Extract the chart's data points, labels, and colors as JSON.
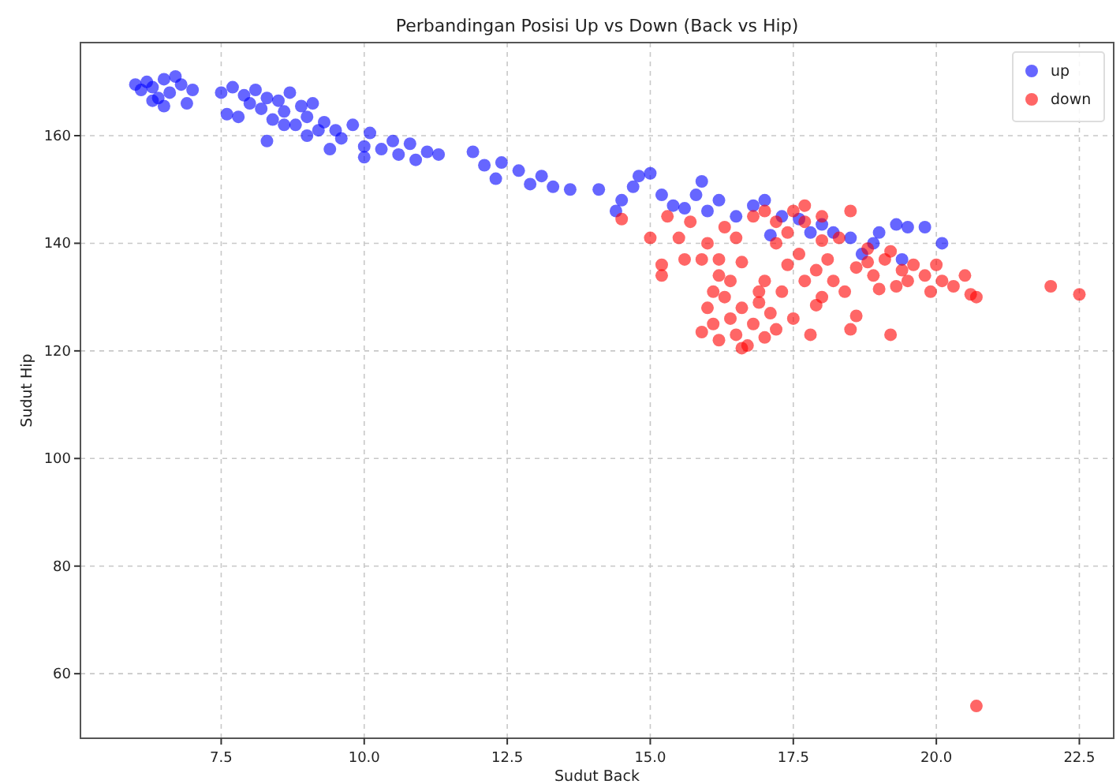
{
  "chart_data": {
    "type": "scatter",
    "title": "Perbandingan Posisi Up vs Down (Back vs Hip)",
    "xlabel": "Sudut Back",
    "ylabel": "Sudut Hip",
    "xlim": [
      5.04,
      23.1
    ],
    "ylim": [
      48,
      177.3
    ],
    "xticks": [
      {
        "value": 7.5,
        "label": "7.5"
      },
      {
        "value": 10,
        "label": "10.0"
      },
      {
        "value": 12.5,
        "label": "12.5"
      },
      {
        "value": 15,
        "label": "15.0"
      },
      {
        "value": 17.5,
        "label": "17.5"
      },
      {
        "value": 20,
        "label": "20.0"
      },
      {
        "value": 22.5,
        "label": "22.5"
      }
    ],
    "yticks": [
      60,
      80,
      100,
      120,
      140,
      160
    ],
    "grid": true,
    "legend": "top right",
    "marker": "circle",
    "series": [
      {
        "name": "up",
        "color": "#0000ff",
        "x": [
          6.0,
          6.1,
          6.2,
          6.3,
          6.4,
          6.5,
          6.6,
          6.7,
          6.8,
          6.9,
          6.5,
          6.3,
          7.0,
          7.5,
          7.6,
          7.7,
          7.8,
          7.9,
          8.0,
          8.1,
          8.2,
          8.3,
          8.4,
          8.5,
          8.6,
          8.7,
          8.8,
          8.9,
          9.0,
          9.1,
          9.2,
          8.3,
          8.6,
          9.0,
          9.3,
          9.5,
          9.6,
          9.8,
          10.0,
          10.1,
          10.3,
          10.5,
          10.6,
          10.8,
          10.9,
          11.1,
          11.3,
          9.4,
          10.0,
          11.9,
          12.1,
          12.3,
          12.4,
          12.7,
          12.9,
          13.1,
          13.3,
          13.6,
          14.1,
          14.4,
          14.5,
          14.7,
          14.8,
          15.0,
          15.2,
          15.4,
          15.6,
          15.8,
          15.9,
          16.0,
          16.2,
          16.5,
          16.8,
          17.0,
          17.1,
          17.3,
          17.6,
          17.8,
          18.0,
          18.2,
          18.5,
          18.7,
          18.9,
          19.0,
          19.3,
          19.5,
          19.4,
          19.8,
          20.1
        ],
        "values": [
          169.5,
          168.5,
          170,
          169,
          167,
          170.5,
          168,
          171,
          169.5,
          166,
          165.5,
          166.5,
          168.5,
          168,
          164,
          169,
          163.5,
          167.5,
          166,
          168.5,
          165,
          167,
          163,
          166.5,
          164.5,
          168,
          162,
          165.5,
          163.5,
          166,
          161,
          159,
          162,
          160,
          162.5,
          161,
          159.5,
          162,
          158,
          160.5,
          157.5,
          159,
          156.5,
          158.5,
          155.5,
          157,
          156.5,
          157.5,
          156,
          157,
          154.5,
          152,
          155,
          153.5,
          151,
          152.5,
          150.5,
          150,
          150,
          146,
          148,
          150.5,
          152.5,
          153,
          149,
          147,
          146.5,
          149,
          151.5,
          146,
          148,
          145,
          147,
          148,
          141.5,
          145,
          144.5,
          142,
          143.5,
          142,
          141,
          138,
          140,
          142,
          143.5,
          143,
          137,
          143,
          140
        ]
      },
      {
        "name": "down",
        "color": "#ff0000",
        "x": [
          14.5,
          15.0,
          15.2,
          15.3,
          15.5,
          15.6,
          15.7,
          15.9,
          16.0,
          16.1,
          16.2,
          16.3,
          16.5,
          16.6,
          16.8,
          17.0,
          17.2,
          17.4,
          17.5,
          17.7,
          17.9,
          16.0,
          16.1,
          16.2,
          16.3,
          16.4,
          16.5,
          16.6,
          16.7,
          16.8,
          16.9,
          17.0,
          17.1,
          17.2,
          16.4,
          16.9,
          17.3,
          17.5,
          17.7,
          17.8,
          17.9,
          18.0,
          18.1,
          18.2,
          18.4,
          18.5,
          18.6,
          18.6,
          18.8,
          18.9,
          19.0,
          19.1,
          19.2,
          19.3,
          19.4,
          19.5,
          19.6,
          19.8,
          19.9,
          20.0,
          20.1,
          20.3,
          20.5,
          20.6,
          20.7,
          22.0,
          22.5,
          20.7,
          18.0,
          18.3,
          17.6,
          18.8,
          19.2,
          16.2,
          17.0,
          15.9,
          16.6,
          17.2,
          17.4,
          17.7,
          18.0,
          18.5,
          15.2
        ],
        "values": [
          144.5,
          141,
          136,
          145,
          141,
          137,
          144,
          137,
          140,
          131,
          137,
          143,
          141,
          136.5,
          145,
          146,
          140,
          136,
          146,
          144,
          135,
          128,
          125,
          122,
          130,
          126,
          123,
          128,
          121,
          125,
          131,
          122.5,
          127,
          124,
          133,
          129,
          131,
          126,
          133,
          123,
          128.5,
          130,
          137,
          133,
          131,
          124,
          126.5,
          135.5,
          139,
          134,
          131.5,
          137,
          123,
          132,
          135,
          133,
          136,
          134,
          131,
          136,
          133,
          132,
          134,
          130.5,
          130,
          132,
          130.5,
          54,
          140.5,
          141,
          138,
          136.5,
          138.5,
          134,
          133,
          123.5,
          120.5,
          144,
          142,
          147,
          145,
          146,
          134
        ]
      }
    ]
  }
}
